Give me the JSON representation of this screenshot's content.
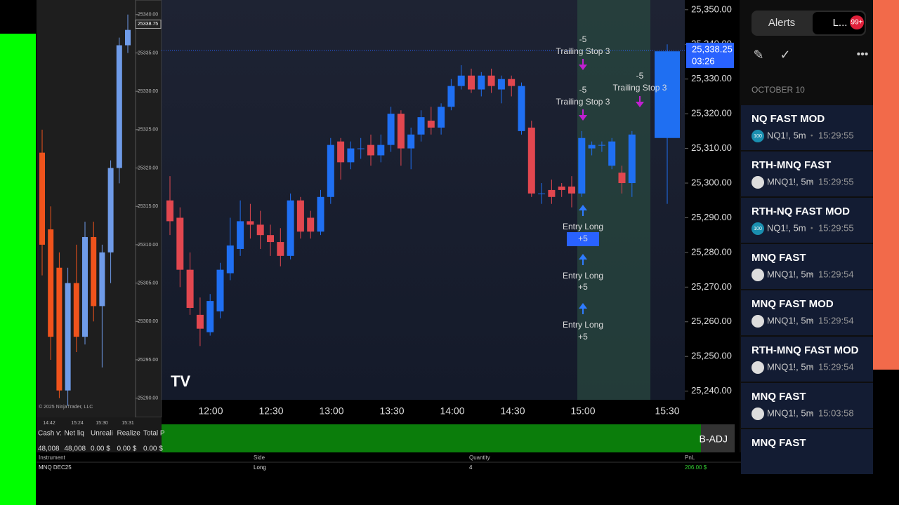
{
  "left_chart": {
    "up_color": "#6f9be8",
    "down_color": "#f0531c",
    "ylim": [
      25287.5,
      25341.9
    ],
    "yticks": [
      {
        "value": 25340,
        "label": "25340.00"
      },
      {
        "value": 25335,
        "label": "25335.00"
      },
      {
        "value": 25330,
        "label": "25330.00"
      },
      {
        "value": 25325,
        "label": "25325.00"
      },
      {
        "value": 25320,
        "label": "25320.00"
      },
      {
        "value": 25315,
        "label": "25315.00"
      },
      {
        "value": 25310,
        "label": "25310.00"
      },
      {
        "value": 25305,
        "label": "25305.00"
      },
      {
        "value": 25300,
        "label": "25300.00"
      },
      {
        "value": 25295,
        "label": "25295.00"
      },
      {
        "value": 25290,
        "label": "25290.00"
      }
    ],
    "last_price": "25338.75",
    "copyright": "© 2025 NinjaTrader, LLC",
    "time_labels": [
      "14:42",
      "15:24",
      "15:30",
      "15:31"
    ],
    "candles": [
      [
        25322,
        25325,
        25306,
        25310
      ],
      [
        25312,
        25315,
        25295,
        25298
      ],
      [
        25307,
        25309,
        25290,
        25291
      ],
      [
        25291,
        25307,
        25289,
        25305
      ],
      [
        25305,
        25310,
        25296,
        25298
      ],
      [
        25298,
        25313,
        25297,
        25311
      ],
      [
        25311,
        25313,
        25300,
        25302
      ],
      [
        25302,
        25310,
        25294,
        25309
      ],
      [
        25309,
        25321,
        25305,
        25320
      ],
      [
        25320,
        25337,
        25318,
        25336
      ],
      [
        25336,
        25340,
        25335,
        25338
      ]
    ]
  },
  "account": {
    "headers": [
      "Cash v:",
      "Net liq",
      "Unreali",
      "Realize",
      "Total P"
    ],
    "values": [
      "48,008",
      "48,008",
      "0.00 $",
      "0.00 $",
      "0.00 $"
    ]
  },
  "main_chart": {
    "up_color": "#1f6ff2",
    "down_color": "#e2474f",
    "ylim": [
      25237.5,
      25352.8
    ],
    "yticks": [
      {
        "value": 25350,
        "label": "25,350.00"
      },
      {
        "value": 25340,
        "label": "25,340.00"
      },
      {
        "value": 25330,
        "label": "25,330.00"
      },
      {
        "value": 25320,
        "label": "25,320.00"
      },
      {
        "value": 25310,
        "label": "25,310.00"
      },
      {
        "value": 25300,
        "label": "25,300.00"
      },
      {
        "value": 25290,
        "label": "25,290.00"
      },
      {
        "value": 25280,
        "label": "25,280.00"
      },
      {
        "value": 25270,
        "label": "25,270.00"
      },
      {
        "value": 25260,
        "label": "25,260.00"
      },
      {
        "value": 25250,
        "label": "25,250.00"
      },
      {
        "value": 25240,
        "label": "25,240.00"
      }
    ],
    "current_price": {
      "value": 25338.25,
      "label": "25,338.25"
    },
    "countdown": "03:26",
    "time_labels": [
      "12:00",
      "12:30",
      "13:00",
      "13:30",
      "14:00",
      "14:30",
      "15:00",
      "15:30"
    ],
    "annotations": [
      "-5",
      "Trailing Stop 3",
      "-5",
      "Trailing Stop 3",
      "-5",
      "Trailing Stop 3",
      "Entry Long",
      "+5",
      "Entry Long",
      "+5",
      "Entry Long",
      "+5"
    ],
    "button": "B-ADJ",
    "candles": [
      [
        25295,
        25302,
        25285,
        25289
      ],
      [
        25290,
        25293,
        25270,
        25275
      ],
      [
        25275,
        25280,
        25262,
        25264
      ],
      [
        25262,
        25267,
        25253,
        25258
      ],
      [
        25257,
        25268,
        25256,
        25266
      ],
      [
        25263,
        25277,
        25261,
        25275
      ],
      [
        25274,
        25290,
        25272,
        25282
      ],
      [
        25281,
        25295,
        25279,
        25289
      ],
      [
        25289,
        25294,
        25284,
        25288
      ],
      [
        25288,
        25292,
        25281,
        25285
      ],
      [
        25285,
        25288,
        25279,
        25283
      ],
      [
        25283,
        25287,
        25276,
        25279
      ],
      [
        25279,
        25297,
        25278,
        25295
      ],
      [
        25295,
        25296,
        25284,
        25286
      ],
      [
        25290,
        25292,
        25284,
        25286
      ],
      [
        25286,
        25298,
        25285,
        25296
      ],
      [
        25296,
        25313,
        25294,
        25311
      ],
      [
        25312,
        25313,
        25301,
        25306
      ],
      [
        25306,
        25312,
        25304,
        25310
      ],
      [
        25310,
        25313,
        25307,
        25310
      ],
      [
        25311,
        25314,
        25305,
        25308
      ],
      [
        25308,
        25314,
        25306,
        25311
      ],
      [
        25311,
        25322,
        25309,
        25320
      ],
      [
        25320,
        25321,
        25305,
        25310
      ],
      [
        25310,
        25316,
        25304,
        25314
      ],
      [
        25314,
        25321,
        25312,
        25319
      ],
      [
        25318,
        25322,
        25314,
        25316
      ],
      [
        25316,
        25323,
        25314,
        25322
      ],
      [
        25322,
        25330,
        25321,
        25328
      ],
      [
        25328,
        25334,
        25327,
        25331
      ],
      [
        25331,
        25333,
        25326,
        25327
      ],
      [
        25327,
        25332,
        25325,
        25331
      ],
      [
        25331,
        25333,
        25326,
        25328
      ],
      [
        25327,
        25331,
        25323,
        25330
      ],
      [
        25330,
        25331,
        25325,
        25328
      ],
      [
        25315,
        25329,
        25314,
        25328
      ],
      [
        25316,
        25318,
        25296,
        25297
      ],
      [
        25297,
        25300,
        25294,
        25297
      ],
      [
        25298,
        25301,
        25294,
        25296
      ],
      [
        25299,
        25300,
        25296,
        25298
      ],
      [
        25299,
        25302,
        25293,
        25297
      ],
      [
        25297,
        25315,
        25296,
        25313
      ],
      [
        25310,
        25312,
        25308,
        25311
      ],
      [
        25311,
        25312,
        25309,
        25311
      ],
      [
        25305,
        25313,
        25304,
        25312
      ],
      [
        25303,
        25305,
        25297,
        25300
      ],
      [
        25300,
        25315,
        25296,
        25314
      ],
      [
        25313,
        25340,
        25294,
        25338
      ]
    ]
  },
  "alerts_panel": {
    "tabs": [
      "Alerts",
      "L..."
    ],
    "badge": "99+",
    "date": "OCTOBER 10",
    "items": [
      {
        "title": "NQ FAST MOD",
        "icon": "100",
        "symbol": "NQ1!, 5m",
        "time": "15:29:55"
      },
      {
        "title": "RTH-MNQ FAST",
        "symbol": "MNQ1!, 5m",
        "time": "15:29:55"
      },
      {
        "title": "RTH-NQ FAST MOD",
        "icon": "100",
        "symbol": "NQ1!, 5m",
        "time": "15:29:55"
      },
      {
        "title": "MNQ FAST",
        "symbol": "MNQ1!, 5m",
        "time": "15:29:54"
      },
      {
        "title": "MNQ FAST MOD",
        "symbol": "MNQ1!, 5m",
        "time": "15:29:54"
      },
      {
        "title": "RTH-MNQ FAST MOD",
        "symbol": "MNQ1!, 5m",
        "time": "15:29:54"
      },
      {
        "title": "MNQ FAST",
        "symbol": "MNQ1!, 5m",
        "time": "15:03:58"
      },
      {
        "title": "MNQ FAST"
      }
    ]
  },
  "positions": {
    "headers": [
      "Instrument",
      "Side",
      "Quantity",
      "PnL"
    ],
    "row": [
      "MNQ DEC25",
      "Long",
      "4",
      "206.00 $"
    ]
  }
}
